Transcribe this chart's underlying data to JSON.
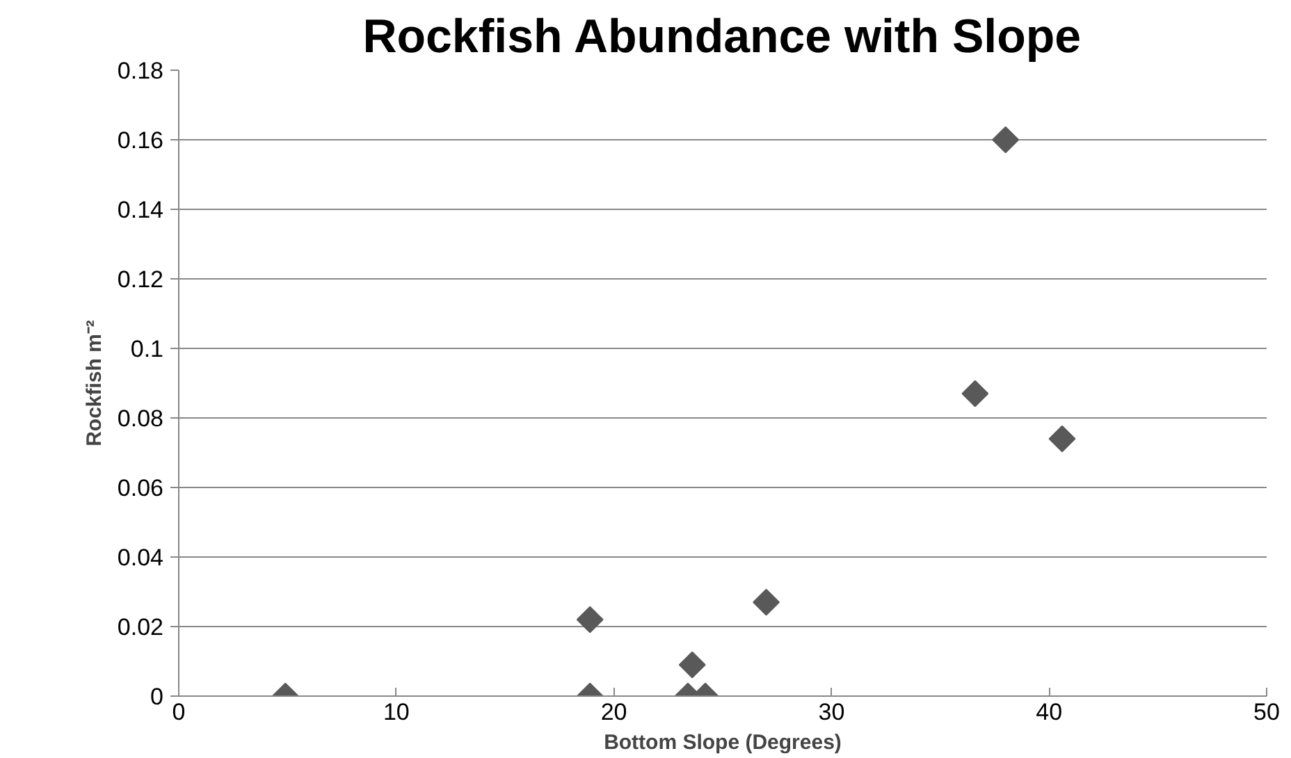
{
  "chart_data": {
    "type": "scatter",
    "title": "Rockfish Abundance with Slope",
    "xlabel": "Bottom Slope (Degrees)",
    "ylabel": "Rockfish m⁻²",
    "x": [
      4.9,
      18.9,
      18.9,
      23.4,
      23.6,
      24.2,
      27.0,
      36.6,
      38.0,
      40.6
    ],
    "series": [
      {
        "color": "#595959",
        "values": [
          0,
          0.022,
          0,
          0,
          0.009,
          0,
          0.027,
          0.087,
          0.16,
          0.074
        ]
      }
    ],
    "xlim": [
      0,
      50
    ],
    "xticks": [
      0,
      10,
      20,
      30,
      40,
      50
    ],
    "ylim": [
      0,
      0.18
    ],
    "yticks": [
      0,
      {
        "value": 0.02,
        "label": "0.02"
      },
      {
        "value": 0.04,
        "label": "0.04"
      },
      {
        "value": 0.06,
        "label": "0.06"
      },
      {
        "value": 0.08,
        "label": "0.08"
      },
      {
        "value": 0.1,
        "label": "0.1"
      },
      {
        "value": 0.12,
        "label": "0.12"
      },
      {
        "value": 0.14,
        "label": "0.14"
      },
      {
        "value": 0.16,
        "label": "0.16"
      },
      {
        "value": 0.18,
        "label": "0.18"
      }
    ],
    "grid": "y",
    "marker": "diamond"
  }
}
